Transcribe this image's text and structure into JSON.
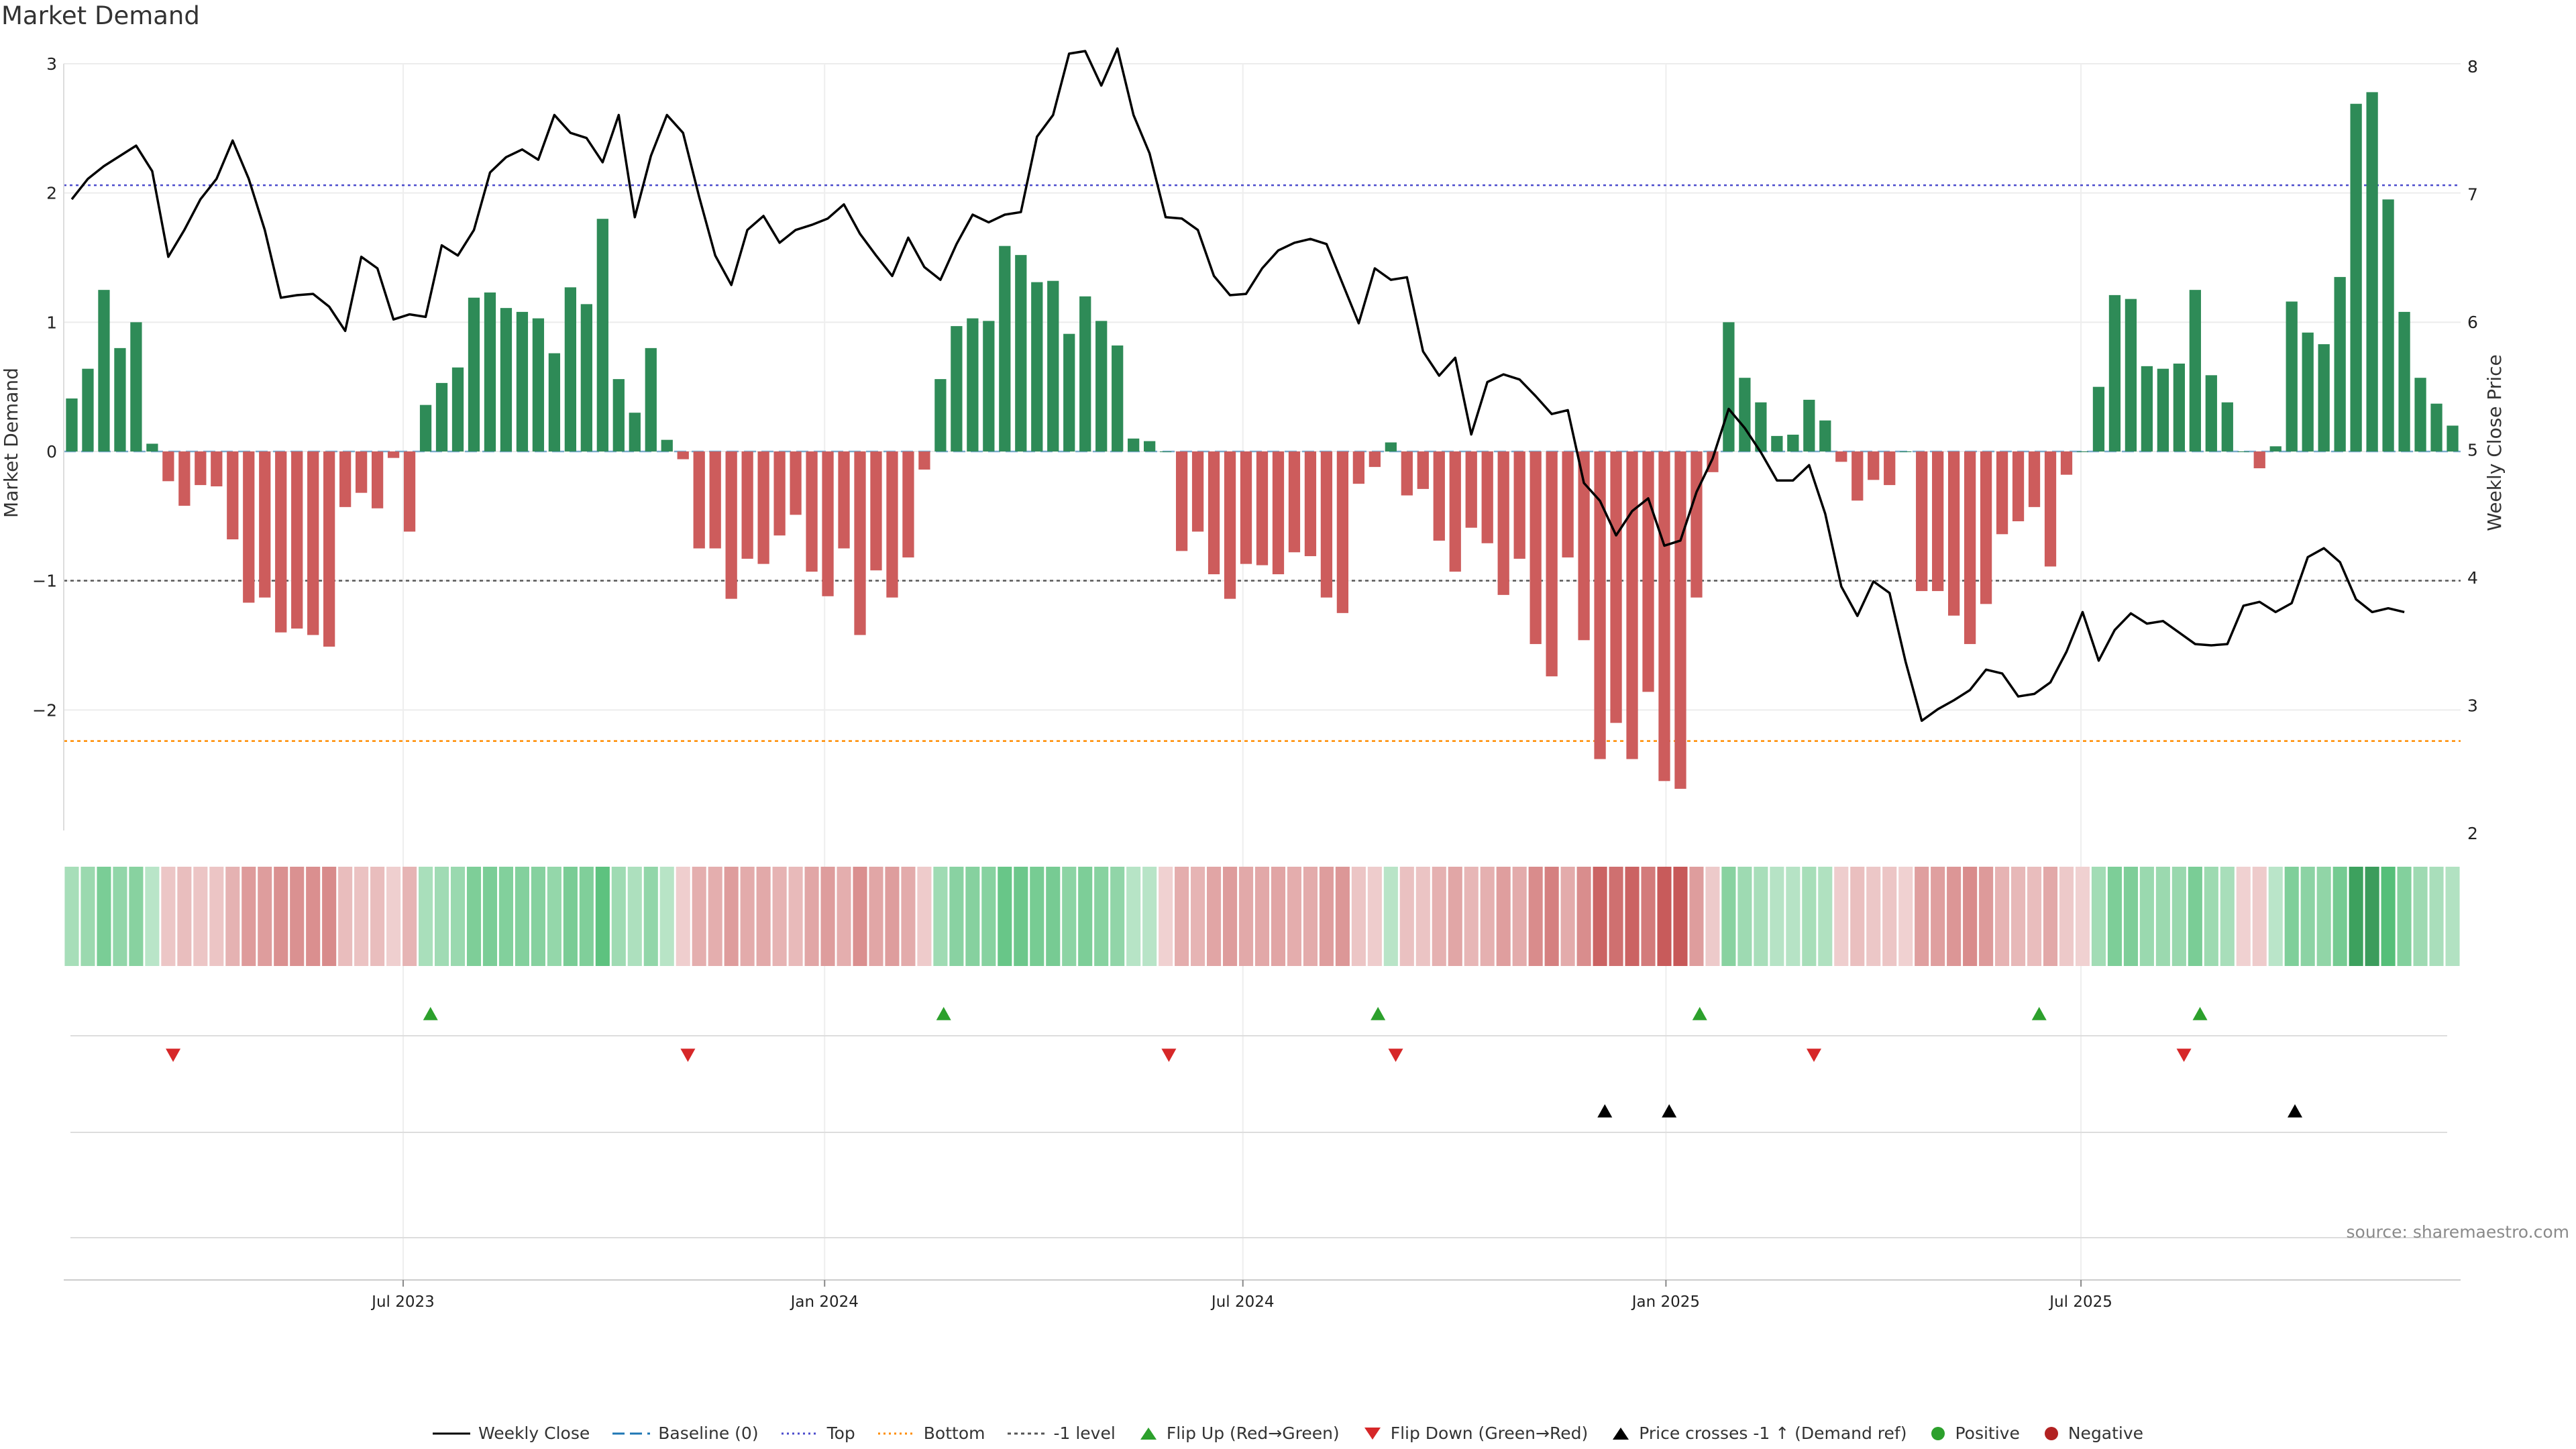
{
  "title": "Market Demand",
  "source": "source: sharemaestro.com",
  "colors": {
    "positive_bar": "#2e8b57",
    "negative_bar": "#cd5c5c",
    "price_line": "#000000",
    "top_line": "#4b4bcc",
    "bottom_line": "#ff8c00",
    "minus1_line": "#555555",
    "flip_up": "#2ca02c",
    "flip_down": "#d62728",
    "cross": "#000000",
    "positive_dot": "#2ca02c",
    "negative_dot": "#b22222"
  },
  "legend": [
    {
      "icon": "black-line",
      "label": "Weekly Close"
    },
    {
      "icon": "blue-dash",
      "label": "Baseline (0)"
    },
    {
      "icon": "blue-dot-line",
      "label": "Top"
    },
    {
      "icon": "orange-dot-line",
      "label": "Bottom"
    },
    {
      "icon": "gray-dash-line",
      "label": "-1 level"
    },
    {
      "icon": "green-up-triangle",
      "label": "Flip Up (Red→Green)"
    },
    {
      "icon": "red-down-triangle",
      "label": "Flip Down (Green→Red)"
    },
    {
      "icon": "black-up-triangle",
      "label": "Price crosses -1 ↑ (Demand ref)"
    },
    {
      "icon": "green-dot",
      "label": "Positive"
    },
    {
      "icon": "red-dot",
      "label": "Negative"
    }
  ],
  "chart_data": {
    "type": "bar",
    "title": "Market Demand",
    "ylabel": "Market Demand",
    "y2label": "Weekly Close Price",
    "ylim": [
      -2.95,
      3.0
    ],
    "y2lim": [
      2.0,
      8.0
    ],
    "yticks": [
      3,
      2,
      1,
      0,
      -1,
      -2
    ],
    "ytick_labels": [
      "3",
      "2",
      "1",
      "0",
      "−1",
      "−2"
    ],
    "y2ticks": [
      8,
      7,
      6,
      5,
      4,
      3,
      2
    ],
    "x_start_week_index": 0,
    "x_ticks": [
      {
        "label": "Jul 2023",
        "week": 20.6
      },
      {
        "label": "Jan 2024",
        "week": 46.8
      },
      {
        "label": "Jul 2024",
        "week": 72.8
      },
      {
        "label": "Jan 2025",
        "week": 99.1
      },
      {
        "label": "Jul 2025",
        "week": 124.9
      }
    ],
    "reference_lines": {
      "top": 2.06,
      "bottom": -2.24,
      "minus_one": -1.0,
      "baseline": 0
    },
    "demand": [
      0.41,
      0.64,
      1.25,
      0.8,
      1.0,
      0.06,
      -0.23,
      -0.42,
      -0.26,
      -0.27,
      -0.68,
      -1.17,
      -1.13,
      -1.4,
      -1.37,
      -1.42,
      -1.51,
      -0.43,
      -0.32,
      -0.44,
      -0.05,
      -0.62,
      0.36,
      0.53,
      0.65,
      1.19,
      1.23,
      1.11,
      1.08,
      1.03,
      0.76,
      1.27,
      1.14,
      1.8,
      0.56,
      0.3,
      0.8,
      0.09,
      -0.06,
      -0.75,
      -0.75,
      -1.14,
      -0.83,
      -0.87,
      -0.65,
      -0.49,
      -0.93,
      -1.12,
      -0.75,
      -1.42,
      -0.92,
      -1.13,
      -0.82,
      -0.14,
      0.56,
      0.97,
      1.03,
      1.01,
      1.59,
      1.52,
      1.31,
      1.32,
      0.91,
      1.2,
      1.01,
      0.82,
      0.1,
      0.08,
      0.0,
      -0.77,
      -0.62,
      -0.95,
      -1.14,
      -0.87,
      -0.88,
      -0.95,
      -0.78,
      -0.81,
      -1.13,
      -1.25,
      -0.25,
      -0.12,
      0.07,
      -0.34,
      -0.29,
      -0.69,
      -0.93,
      -0.59,
      -0.71,
      -1.11,
      -0.83,
      -1.49,
      -1.74,
      -0.82,
      -1.46,
      -2.38,
      -2.1,
      -2.38,
      -1.86,
      -2.55,
      -2.61,
      -1.13,
      -0.16,
      1.0,
      0.57,
      0.38,
      0.12,
      0.13,
      0.4,
      0.24,
      -0.08,
      -0.38,
      -0.22,
      -0.26,
      0.0,
      -1.08,
      -1.08,
      -1.27,
      -1.49,
      -1.18,
      -0.64,
      -0.54,
      -0.43,
      -0.89,
      -0.18,
      0.0,
      0.5,
      1.21,
      1.18,
      0.66,
      0.64,
      0.68,
      1.25,
      0.59,
      0.38,
      0.0,
      -0.13,
      0.04,
      1.16,
      0.92,
      0.83,
      1.35,
      2.69,
      2.78,
      1.95,
      1.08,
      0.57,
      0.37,
      0.2
    ],
    "price": [
      6.96,
      7.12,
      7.22,
      7.3,
      7.38,
      7.18,
      6.51,
      6.72,
      6.96,
      7.12,
      7.42,
      7.12,
      6.72,
      6.19,
      6.21,
      6.22,
      6.12,
      5.93,
      6.51,
      6.42,
      6.02,
      6.06,
      6.04,
      6.6,
      6.52,
      6.72,
      7.17,
      7.29,
      7.35,
      7.27,
      7.62,
      7.48,
      7.44,
      7.25,
      7.62,
      6.82,
      7.3,
      7.62,
      7.48,
      6.98,
      6.52,
      6.29,
      6.72,
      6.83,
      6.62,
      6.72,
      6.76,
      6.81,
      6.92,
      6.69,
      6.52,
      6.36,
      6.66,
      6.43,
      6.33,
      6.61,
      6.84,
      6.78,
      6.84,
      6.86,
      7.45,
      7.62,
      8.1,
      8.12,
      7.85,
      8.14,
      7.62,
      7.32,
      6.82,
      6.81,
      6.72,
      6.36,
      6.21,
      6.22,
      6.42,
      6.56,
      6.62,
      6.65,
      6.61,
      6.3,
      5.99,
      6.42,
      6.33,
      6.35,
      5.77,
      5.58,
      5.72,
      5.12,
      5.53,
      5.59,
      5.55,
      5.42,
      5.28,
      5.31,
      4.74,
      4.6,
      4.33,
      4.52,
      4.62,
      4.25,
      4.29,
      4.67,
      4.93,
      5.32,
      5.17,
      4.98,
      4.76,
      4.76,
      4.88,
      4.5,
      3.93,
      3.7,
      3.97,
      3.88,
      3.34,
      2.88,
      2.97,
      3.04,
      3.12,
      3.28,
      3.25,
      3.07,
      3.09,
      3.18,
      3.42,
      3.73,
      3.35,
      3.59,
      3.72,
      3.64,
      3.66,
      3.57,
      3.48,
      3.47,
      3.48,
      3.78,
      3.81,
      3.73,
      3.8,
      4.16,
      4.23,
      4.12,
      3.83,
      3.73,
      3.76,
      3.73
    ],
    "flip_up_weeks": [
      22.3,
      54.2,
      81.2,
      101.2,
      122.3,
      132.3
    ],
    "flip_down_weeks": [
      6.3,
      38.3,
      68.2,
      82.3,
      108.3,
      131.3
    ],
    "cross_up_weeks": [
      95.3,
      99.3,
      138.2
    ]
  }
}
